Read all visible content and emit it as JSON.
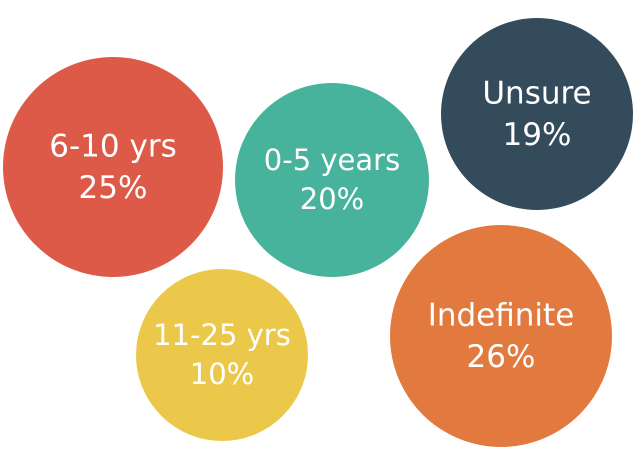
{
  "chart_data": {
    "type": "bubble",
    "items": [
      {
        "label": "6-10 yrs",
        "value_label": "25%",
        "value": 25,
        "color": "#de5a48"
      },
      {
        "label": "0-5 years",
        "value_label": "20%",
        "value": 20,
        "color": "#47b39c"
      },
      {
        "label": "Unsure",
        "value_label": "19%",
        "value": 19,
        "color": "#334b5a"
      },
      {
        "label": "11-25 yrs",
        "value_label": "10%",
        "value": 10,
        "color": "#ecc84a"
      },
      {
        "label": "Indefinite",
        "value_label": "26%",
        "value": 26,
        "color": "#e27a3f"
      }
    ]
  }
}
